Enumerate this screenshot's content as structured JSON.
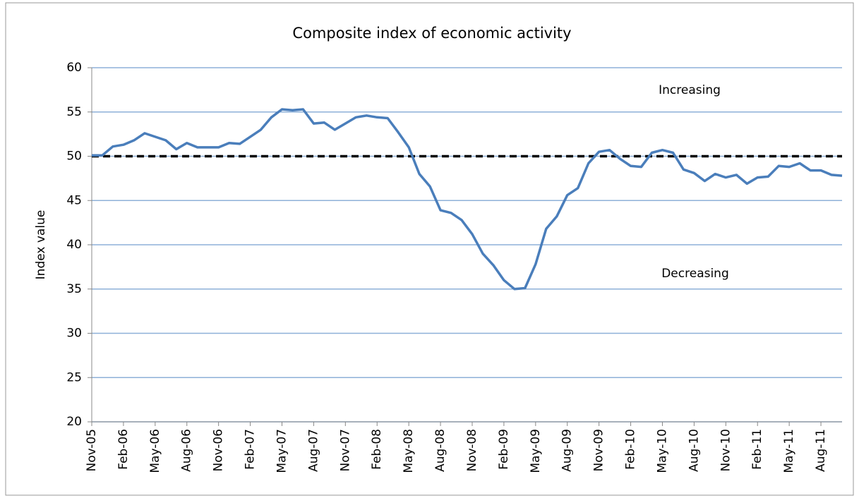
{
  "chart_data": {
    "type": "line",
    "title": "Composite index of economic activity",
    "y_label": "Index value",
    "annotations": [
      "Increasing",
      "Decreasing"
    ],
    "categories": [
      "Nov-05",
      null,
      null,
      "Feb-06",
      null,
      null,
      "May-06",
      null,
      null,
      "Aug-06",
      null,
      null,
      "Nov-06",
      null,
      null,
      "Feb-07",
      null,
      null,
      "May-07",
      null,
      null,
      "Aug-07",
      null,
      null,
      "Nov-07",
      null,
      null,
      "Feb-08",
      null,
      null,
      "May-08",
      null,
      null,
      "Aug-08",
      null,
      null,
      "Nov-08",
      null,
      null,
      "Feb-09",
      null,
      null,
      "May-09",
      null,
      null,
      "Aug-09",
      null,
      null,
      "Nov-09",
      null,
      null,
      "Feb-10",
      null,
      null,
      "May-10",
      null,
      null,
      "Aug-10",
      null,
      null,
      "Nov-10",
      null,
      null,
      "Feb-11",
      null,
      null,
      "May-11",
      null,
      null,
      "Aug-11",
      null,
      null
    ],
    "series": [
      {
        "name": "Composite index",
        "color": "#4a7ebb",
        "values": [
          50.1,
          50.1,
          51.1,
          51.3,
          51.8,
          52.6,
          52.2,
          51.8,
          50.8,
          51.5,
          51.0,
          51.0,
          51.0,
          51.5,
          51.4,
          52.2,
          53.0,
          54.4,
          55.3,
          55.2,
          55.3,
          53.7,
          53.8,
          53.0,
          53.7,
          54.4,
          54.6,
          54.4,
          54.3,
          52.7,
          51.0,
          48.0,
          46.6,
          43.9,
          43.6,
          42.8,
          41.2,
          39.0,
          37.7,
          36.0,
          35.0,
          35.1,
          37.8,
          41.8,
          43.2,
          45.6,
          46.4,
          49.2,
          50.5,
          50.7,
          49.7,
          48.9,
          48.8,
          50.4,
          50.7,
          50.4,
          48.5,
          48.1,
          47.2,
          48.0,
          47.6,
          47.9,
          46.9,
          47.6,
          47.7,
          48.9,
          48.8,
          49.2,
          48.4,
          48.4,
          47.9,
          47.8
        ]
      }
    ],
    "reference_line": {
      "value": 50,
      "color": "#000000"
    },
    "ylim": [
      20,
      60
    ],
    "yticks": [
      20,
      25,
      30,
      35,
      40,
      45,
      50,
      55,
      60
    ],
    "grid": true
  }
}
